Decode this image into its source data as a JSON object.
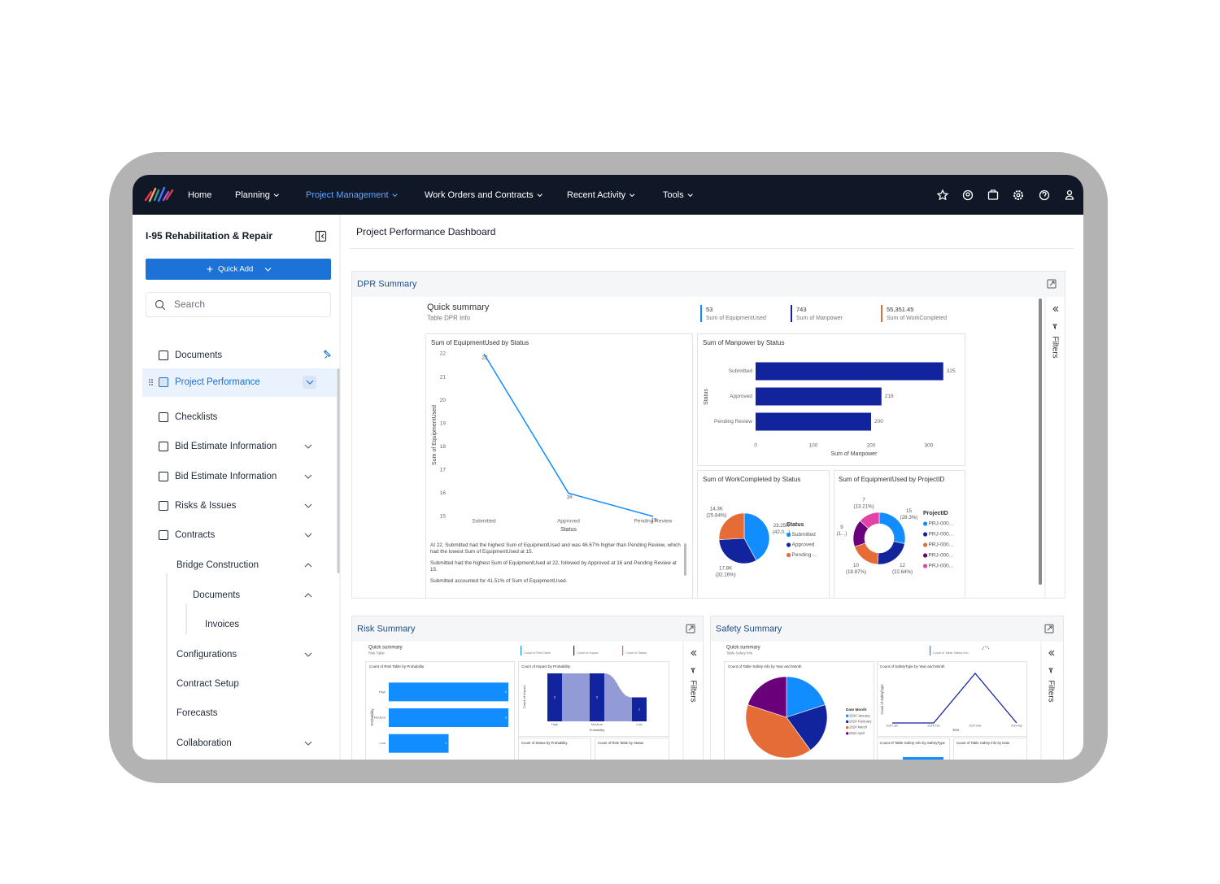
{
  "nav": {
    "items": [
      "Home",
      "Planning",
      "Project Management",
      "Work Orders and Contracts",
      "Recent Activity",
      "Tools"
    ],
    "active_index": 2
  },
  "sidebar": {
    "project": "I-95 Rehabilitation & Repair",
    "quick_add": "Quick Add",
    "search_placeholder": "Search",
    "selected_index": 1,
    "items": [
      {
        "label": "Documents",
        "level": 0
      },
      {
        "label": "Project Performance",
        "level": 0,
        "expanded": false
      },
      {
        "label": "Checklists",
        "level": 0
      },
      {
        "label": "Bid Estimate Information",
        "level": 0,
        "expanded": false
      },
      {
        "label": "Bid Estimate Information",
        "level": 0,
        "expanded": false
      },
      {
        "label": "Risks & Issues",
        "level": 0,
        "expanded": false
      },
      {
        "label": "Contracts",
        "level": 0,
        "expanded": false
      },
      {
        "label": "Bridge Construction",
        "level": 1,
        "expanded": true
      },
      {
        "label": "Documents",
        "level": 2,
        "expanded": true
      },
      {
        "label": "Invoices",
        "level": 3
      },
      {
        "label": "Configurations",
        "level": 1,
        "expanded": false
      },
      {
        "label": "Contract Setup",
        "level": 1
      },
      {
        "label": "Forecasts",
        "level": 1
      },
      {
        "label": "Collaboration",
        "level": 1,
        "expanded": false
      }
    ]
  },
  "page_title": "Project Performance Dashboard",
  "filters_label": "Filters",
  "dpr": {
    "title": "DPR Summary",
    "summary_title": "Quick summary",
    "summary_subtitle": "Table DPR Info",
    "kpis": [
      {
        "value": "53",
        "label": "Sum of EquipmentUsed",
        "color": "#118dff"
      },
      {
        "value": "743",
        "label": "Sum of Manpower",
        "color": "#12239e"
      },
      {
        "value": "55,351.45",
        "label": "Sum of WorkCompleted",
        "color": "#e66c37"
      }
    ],
    "equipment_chart": {
      "type": "line",
      "title": "Sum of EquipmentUsed by Status",
      "x_label": "Status",
      "y_label": "Sum of EquipmentUsed",
      "categories": [
        "Submitted",
        "Approved",
        "Pending Review"
      ],
      "values": [
        22,
        16,
        15
      ],
      "ylim": [
        15,
        22
      ],
      "yticks": [
        15,
        16,
        17,
        18,
        19,
        20,
        21,
        22
      ],
      "color": "#118dff"
    },
    "narrative": [
      "At 22, Submitted had the highest Sum of EquipmentUsed and was 46.67% higher than Pending Review, which had the lowest Sum of EquipmentUsed at 15.",
      "Submitted had the highest Sum of EquipmentUsed at 22, followed by Approved at 16 and Pending Review at 15.",
      "Submitted accounted for 41.51% of Sum of EquipmentUsed."
    ],
    "manpower_chart": {
      "type": "bar",
      "title": "Sum of Manpower by Status",
      "x_label": "Sum of Manpower",
      "y_label": "Status",
      "categories": [
        "Submitted",
        "Approved",
        "Pending Review"
      ],
      "values": [
        325,
        218,
        200
      ],
      "xlim": [
        0,
        350
      ],
      "xticks": [
        0,
        100,
        200,
        300
      ],
      "color": "#12239e"
    },
    "work_chart": {
      "type": "pie",
      "title": "Sum of WorkCompleted by Status",
      "legend_title": "Status",
      "categories": [
        "Submitted",
        "Approved",
        "Pending ..."
      ],
      "values": [
        23.25,
        17.8,
        14.3
      ],
      "value_labels": [
        "23.25K",
        "17.8K",
        "14.3K"
      ],
      "percent_labels": [
        "(42.0...)",
        "(32.16%)",
        "(25.84%)"
      ],
      "colors": [
        "#118dff",
        "#12239e",
        "#e66c37"
      ]
    },
    "project_chart": {
      "type": "donut",
      "title": "Sum of EquipmentUsed by ProjectID",
      "legend_title": "ProjectID",
      "categories": [
        "PRJ-000...",
        "PRJ-000...",
        "PRJ-000...",
        "PRJ-000...",
        "PRJ-000..."
      ],
      "values": [
        15,
        12,
        10,
        9,
        7
      ],
      "percent_labels": [
        "(28.3%)",
        "(22.64%)",
        "(18.87%)",
        "(1...)",
        "(13.21%)"
      ],
      "colors": [
        "#118dff",
        "#12239e",
        "#e66c37",
        "#6b007b",
        "#e044a7"
      ]
    }
  },
  "risk": {
    "title": "Risk Summary",
    "summary_title": "Quick summary",
    "summary_subtitle": "Risk Table",
    "kpi_labels": [
      "Count of Risk Table",
      "Count of Impact",
      "Count of Status"
    ],
    "kpi_colors": [
      "#118dff",
      "#12239e",
      "#e66c37"
    ],
    "probability_chart": {
      "type": "bar",
      "title": "Count of Risk Table by Probability",
      "y_label": "Probability",
      "categories": [
        "High",
        "Medium",
        "Low"
      ],
      "values": [
        2,
        2,
        1
      ],
      "xlim": [
        0,
        2
      ],
      "color": "#118dff"
    },
    "impact_chart": {
      "type": "ribbon",
      "title": "Count of Impact by Probability",
      "x_label": "Probability",
      "y_label": "Count of Impact",
      "categories": [
        "High",
        "Medium",
        "Low"
      ],
      "values": [
        2,
        2,
        1
      ],
      "ylim": [
        0,
        2
      ],
      "color": "#12239e"
    },
    "other_titles": [
      "Count of Status by Probability",
      "Count of Risk Table by Status"
    ]
  },
  "safety": {
    "title": "Safety Summary",
    "summary_title": "Quick summary",
    "summary_subtitle": "Table Safety Info",
    "kpi_labels": [
      "Count of Table Safety Info"
    ],
    "kpi_colors": [
      "#118dff"
    ],
    "month_chart": {
      "type": "pie",
      "title": "Count of Table Safety Info by Year and Month",
      "legend_title": "Date Month",
      "categories": [
        "2024 January",
        "2024 February",
        "2024 March",
        "2024 April"
      ],
      "values": [
        1,
        1,
        2,
        1
      ],
      "colors": [
        "#118dff",
        "#12239e",
        "#e66c37",
        "#6b007b"
      ]
    },
    "type_chart": {
      "type": "line",
      "title": "Count of SafetyType by Year and Month",
      "x_label": "Year",
      "y_label": "Count of SafetyType",
      "categories": [
        "2024 Jan",
        "2024 Feb",
        "2024 Mar",
        "2024 Apr"
      ],
      "values": [
        0,
        0,
        1,
        0
      ],
      "ylim": [
        0,
        1
      ],
      "color": "#12239e"
    },
    "other_titles": [
      "Count of Table Safety Info by SafetyType",
      "Count of Table Safety Info by Date"
    ]
  }
}
